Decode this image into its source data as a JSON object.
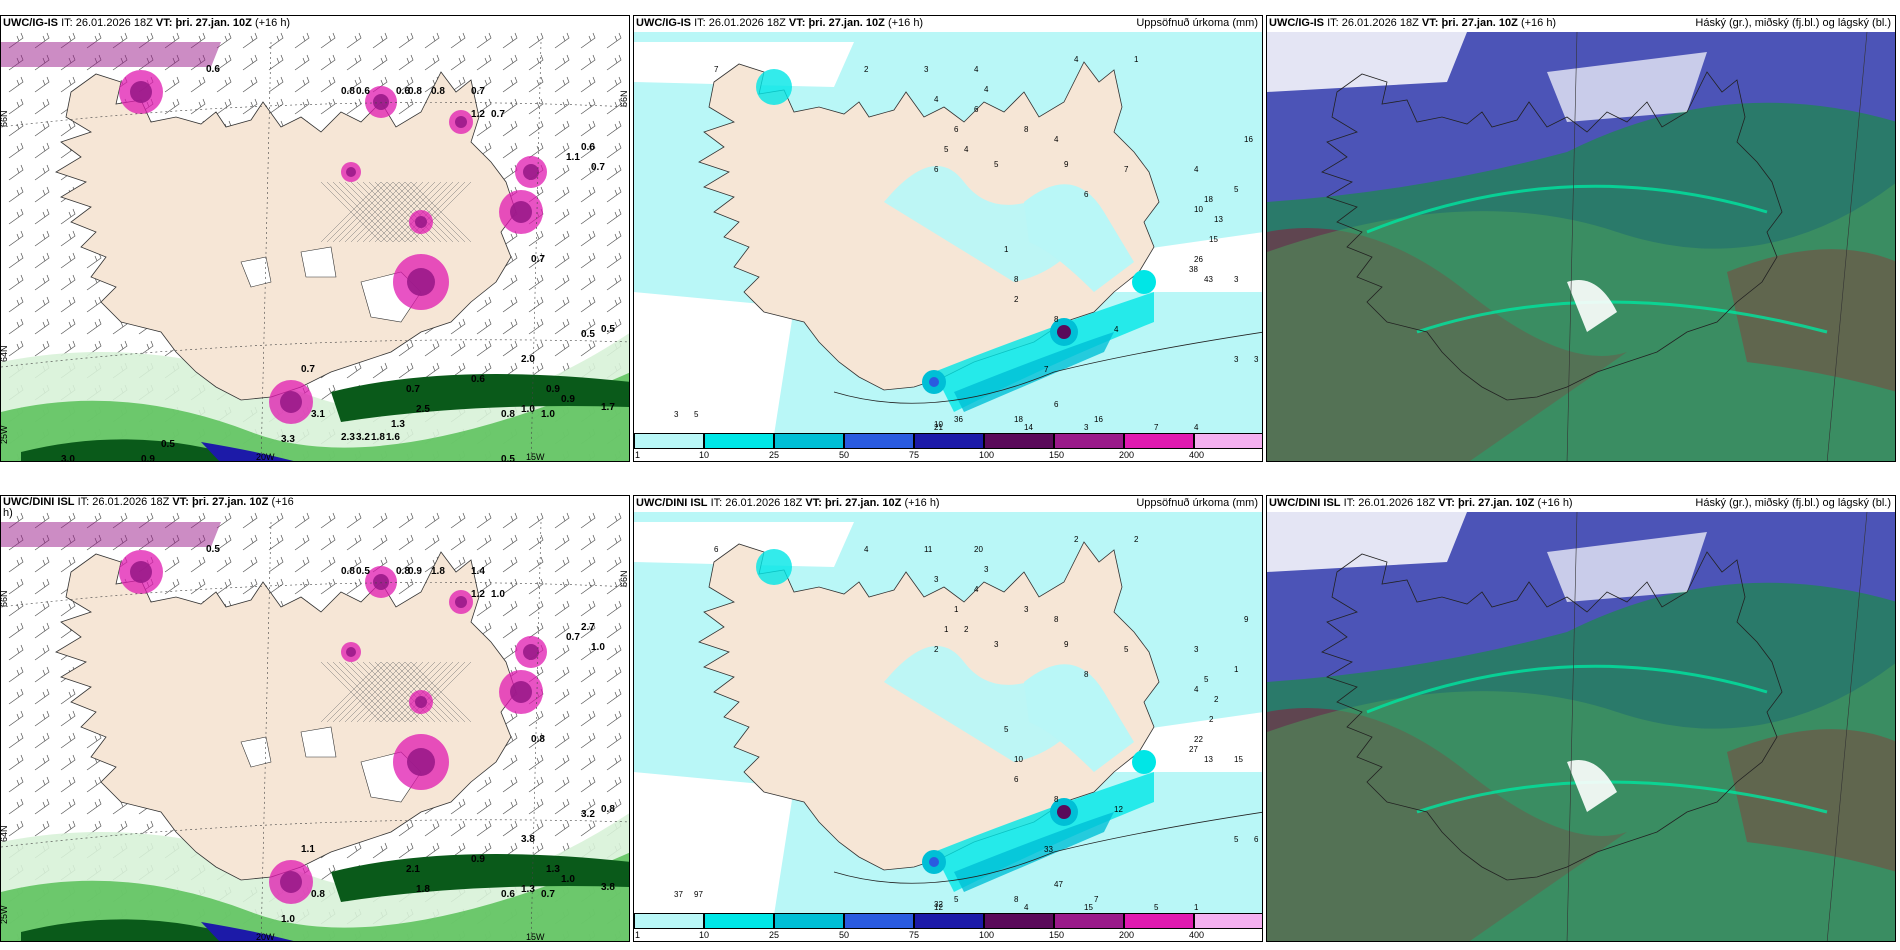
{
  "colors": {
    "land": "#f6e6d6",
    "sea_wind": "#ffffff",
    "precip_light": "#b9f7f7",
    "precip_cyan": "#00e6e6",
    "precip_teal": "#00bfd6",
    "precip_blue": "#2a5be0",
    "precip_navy": "#1c1aa8",
    "precip_purple": "#5a0a5a",
    "precip_magenta": "#9a1a8a",
    "precip_pink": "#e01ab0",
    "precip_lilac": "#f4b0f0",
    "snow_light": "#d8f2d8",
    "snow_mid": "#58c058",
    "snow_dark": "#0a5a1a",
    "cloud_high": "#5050c0",
    "cloud_mid": "#2a7a6a",
    "cloud_low": "#8a1a3a",
    "cloud_green": "#4aa05a"
  },
  "row_top": {
    "panel_wind": {
      "model": "UWC/IG-IS",
      "it_label": "IT:",
      "it_value": "26.01.2026 18Z",
      "vt_label": "VT:",
      "vt_value": "þri. 27.jan. 10Z",
      "lead": "(+16 h)",
      "lat_labels": [
        "66N",
        "64N",
        "25W",
        "66N"
      ],
      "lon_labels": [
        "20W",
        "15W"
      ],
      "values": [
        "0.6",
        "0.8",
        "0.6",
        "0.6",
        "0.8",
        "0.8",
        "0.7",
        "1.2",
        "0.7",
        "0.6",
        "1.1",
        "0.7",
        "0.7",
        "0.5",
        "0.5",
        "2.0",
        "0.7",
        "0.9",
        "0.6",
        "0.7",
        "1.0",
        "0.9",
        "0.8",
        "1.0",
        "1.7",
        "2.5",
        "3.1",
        "3.3",
        "0.5",
        "3.0",
        "0.9",
        "0.5",
        "1.3",
        "2.3",
        "3.2",
        "1.8",
        "1.6"
      ]
    },
    "panel_precip": {
      "model": "UWC/IG-IS",
      "it_label": "IT:",
      "it_value": "26.01.2026 18Z",
      "vt_label": "VT:",
      "vt_value": "þri. 27.jan. 10Z",
      "lead": "(+16 h)",
      "right_title": "Uppsöfnuð úrkoma (mm)",
      "values": [
        "7",
        "2",
        "3",
        "4",
        "4",
        "4",
        "1",
        "4",
        "6",
        "6",
        "5",
        "4",
        "6",
        "5",
        "8",
        "4",
        "9",
        "6",
        "7",
        "4",
        "18",
        "10",
        "13",
        "5",
        "15",
        "16",
        "1",
        "8",
        "2",
        "8",
        "26",
        "38",
        "43",
        "3",
        "4",
        "7",
        "6",
        "3",
        "14",
        "36",
        "10",
        "21",
        "18",
        "16",
        "7",
        "4",
        "3",
        "3",
        "3",
        "5"
      ],
      "colorbar_labels": [
        "1",
        "10",
        "25",
        "50",
        "75",
        "100",
        "150",
        "200",
        "400"
      ]
    },
    "panel_cloud": {
      "model": "UWC/IG-IS",
      "it_label": "IT:",
      "it_value": "26.01.2026 18Z",
      "vt_label": "VT:",
      "vt_value": "þri. 27.jan. 10Z",
      "lead": "(+16 h)",
      "right_title": "Háský (gr.), miðský (fj.bl.) og lágský (bl.)"
    }
  },
  "row_bottom": {
    "panel_wind": {
      "model": "UWC/DINI ISL",
      "it_label": "IT:",
      "it_value": "26.01.2026 18Z",
      "vt_label": "VT:",
      "vt_value": "þri. 27.jan. 10Z",
      "lead": "(+16",
      "lead_wrap": "h)",
      "lat_labels": [
        "66N",
        "64N",
        "25W",
        "66N"
      ],
      "lon_labels": [
        "20W",
        "15W"
      ],
      "values": [
        "0.5",
        "0.8",
        "0.5",
        "0.8",
        "0.9",
        "1.8",
        "1.4",
        "1.2",
        "1.0",
        "2.7",
        "0.7",
        "1.0",
        "0.8",
        "0.8",
        "3.2",
        "3.8",
        "1.1",
        "1.3",
        "0.9",
        "2.1",
        "1.3",
        "1.0",
        "0.6",
        "0.7",
        "3.8",
        "1.8",
        "0.8",
        "1.0"
      ]
    },
    "panel_precip": {
      "model": "UWC/DINI ISL",
      "it_label": "IT:",
      "it_value": "26.01.2026 18Z",
      "vt_label": "VT:",
      "vt_value": "þri. 27.jan. 10Z",
      "lead": "(+16 h)",
      "right_title": "Uppsöfnuð úrkoma (mm)",
      "values": [
        "6",
        "4",
        "11",
        "20",
        "3",
        "2",
        "2",
        "3",
        "4",
        "1",
        "1",
        "2",
        "2",
        "3",
        "3",
        "8",
        "9",
        "8",
        "5",
        "3",
        "5",
        "4",
        "2",
        "1",
        "2",
        "9",
        "5",
        "10",
        "6",
        "8",
        "22",
        "27",
        "13",
        "15",
        "12",
        "33",
        "47",
        "15",
        "4",
        "5",
        "32",
        "12",
        "8",
        "7",
        "5",
        "1",
        "5",
        "6",
        "37",
        "97"
      ],
      "colorbar_labels": [
        "1",
        "10",
        "25",
        "50",
        "75",
        "100",
        "150",
        "200",
        "400"
      ]
    },
    "panel_cloud": {
      "model": "UWC/DINI ISL",
      "it_label": "IT:",
      "it_value": "26.01.2026 18Z",
      "vt_label": "VT:",
      "vt_value": "þri. 27.jan. 10Z",
      "lead": "(+16 h)",
      "right_title": "Háský (gr.), miðský (fj.bl.) og lágský (bl.)"
    }
  }
}
